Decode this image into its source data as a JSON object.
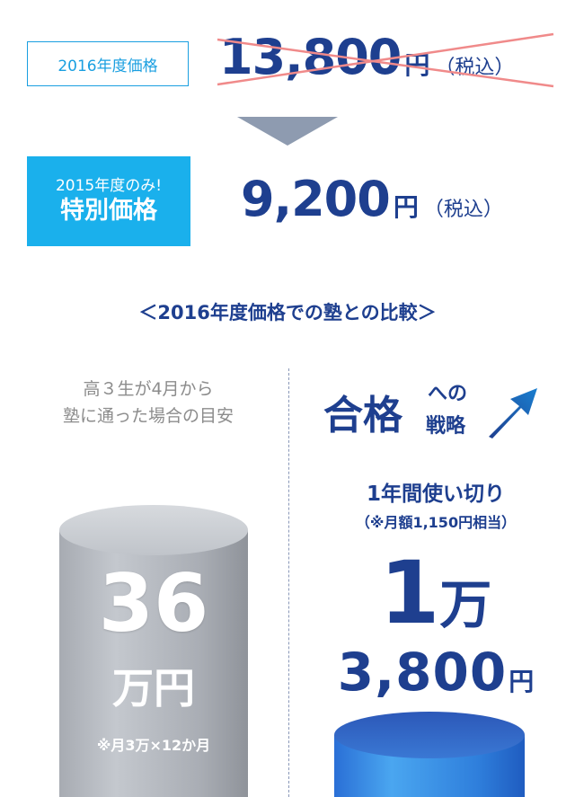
{
  "pricing": {
    "old_label": "2016年度価格",
    "old_price": "13,800",
    "old_unit": "円",
    "old_tax": "（税込）",
    "new_label_line1": "2015年度のみ!",
    "new_label_line2": "特別価格",
    "new_price": "9,200",
    "new_unit": "円",
    "new_tax": "（税込）"
  },
  "comparison": {
    "title": "＜2016年度価格での塾との比較＞",
    "left": {
      "desc_line1": "高３生が4月から",
      "desc_line2": "塾に通った場合の目安",
      "amount": "36",
      "unit": "万円",
      "note": "※月3万×12か月"
    },
    "right": {
      "strategy_main": "合格",
      "strategy_he": "への",
      "strategy_senryaku": "戦略",
      "heading": "1年間使い切り",
      "subheading": "（※月額1,150円相当）",
      "amount_man": "1",
      "unit_man": "万",
      "amount_rest": "3,800",
      "unit_yen": "円"
    }
  },
  "colors": {
    "navy": "#1e3f8f",
    "cyan": "#1ab0ec",
    "strike": "#f08a8a",
    "gray_text": "#8c8c8c"
  }
}
